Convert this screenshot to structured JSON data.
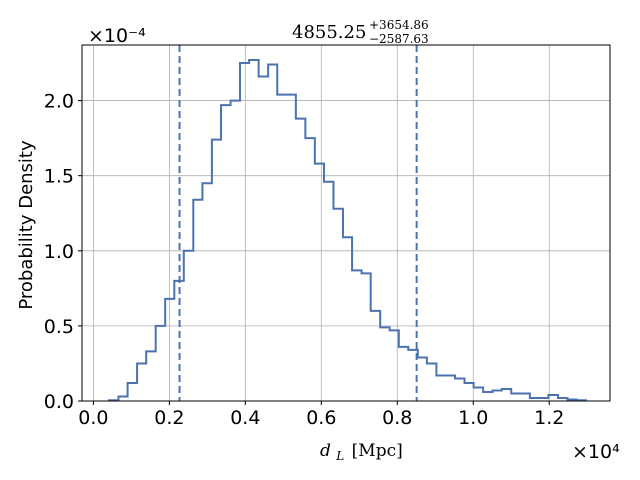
{
  "chart_data": {
    "type": "histogram",
    "title": {
      "median": "4855.25",
      "upper": "+3654.86",
      "lower": "−2587.63"
    },
    "xlabel": "d_L [Mpc]",
    "xlabel_parts": {
      "symbol": "d",
      "subscript": "L",
      "unit": "[Mpc]"
    },
    "ylabel": "Probability Density",
    "x_offset_text": "×10⁴",
    "y_offset_text": "×10⁻⁴",
    "x_scale": 10000,
    "y_scale": 0.0001,
    "xlim": [
      -0.03,
      1.36
    ],
    "ylim": [
      0,
      2.37
    ],
    "xticks": [
      0.0,
      0.2,
      0.4,
      0.6,
      0.8,
      1.0,
      1.2
    ],
    "xtick_labels": [
      "0.0",
      "0.2",
      "0.4",
      "0.6",
      "0.8",
      "1.0",
      "1.2"
    ],
    "yticks": [
      0.0,
      0.5,
      1.0,
      1.5,
      2.0
    ],
    "ytick_labels": [
      "0.0",
      "0.5",
      "1.0",
      "1.5",
      "2.0"
    ],
    "grid": true,
    "line_color": "#4c72b0",
    "bin_edges": [
      0.041,
      0.066,
      0.09,
      0.115,
      0.139,
      0.164,
      0.189,
      0.213,
      0.238,
      0.263,
      0.287,
      0.312,
      0.336,
      0.361,
      0.386,
      0.41,
      0.435,
      0.46,
      0.484,
      0.509,
      0.533,
      0.558,
      0.583,
      0.607,
      0.632,
      0.657,
      0.681,
      0.706,
      0.73,
      0.755,
      0.78,
      0.804,
      0.829,
      0.854,
      0.878,
      0.903,
      0.928,
      0.952,
      0.977,
      1.001,
      1.026,
      1.051,
      1.075,
      1.1,
      1.125,
      1.149,
      1.174,
      1.198,
      1.223,
      1.248,
      1.272,
      1.297
    ],
    "values": [
      0.005,
      0.03,
      0.12,
      0.25,
      0.33,
      0.5,
      0.68,
      0.8,
      1.0,
      1.34,
      1.45,
      1.74,
      1.97,
      2.0,
      2.25,
      2.27,
      2.16,
      2.24,
      2.04,
      2.04,
      1.88,
      1.75,
      1.58,
      1.46,
      1.28,
      1.09,
      0.87,
      0.85,
      0.6,
      0.49,
      0.47,
      0.36,
      0.34,
      0.29,
      0.25,
      0.17,
      0.17,
      0.15,
      0.12,
      0.09,
      0.06,
      0.07,
      0.08,
      0.05,
      0.05,
      0.02,
      0.02,
      0.04,
      0.02,
      0.01,
      0.005
    ],
    "credible_interval_lines": [
      0.2268,
      0.851
    ],
    "interval_line_style": "dashed"
  }
}
